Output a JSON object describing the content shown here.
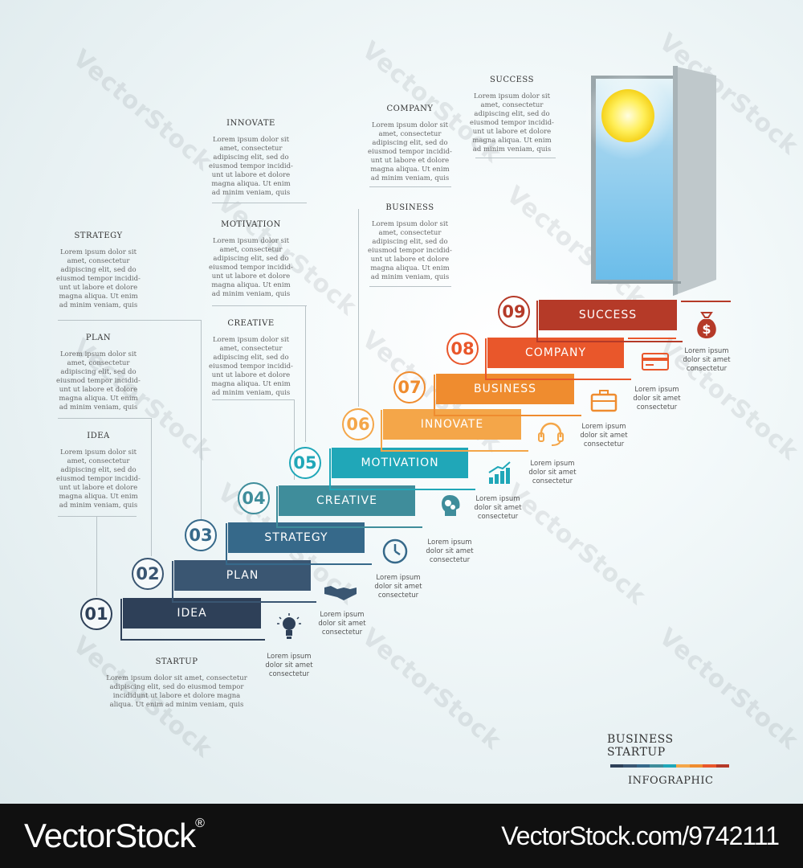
{
  "watermark": "VectorStock",
  "top_blocks": [
    {
      "title": "STRATEGY",
      "text": "Lorem ipsum dolor sit amet, consectetur adipiscing elit, sed do eiusmod tempor incidid-unt ut labore et dolore magna aliqua. Ut enim ad minim veniam, quis"
    },
    {
      "title": "PLAN",
      "text": "Lorem ipsum dolor sit amet, consectetur adipiscing elit, sed do eiusmod tempor incidid-unt ut labore et dolore magna aliqua. Ut enim ad minim veniam, quis"
    },
    {
      "title": "IDEA",
      "text": "Lorem ipsum dolor sit amet, consectetur adipiscing elit, sed do eiusmod tempor incidid-unt ut labore et dolore magna aliqua. Ut enim ad minim veniam, quis"
    },
    {
      "title": "INNOVATE",
      "text": "Lorem ipsum dolor sit amet, consectetur adipiscing elit, sed do eiusmod tempor incidid-unt ut labore et dolore magna aliqua. Ut enim ad minim veniam, quis"
    },
    {
      "title": "MOTIVATION",
      "text": "Lorem ipsum dolor sit amet, consectetur adipiscing elit, sed do eiusmod tempor incidid-unt ut labore et dolore magna aliqua. Ut enim ad minim veniam, quis"
    },
    {
      "title": "CREATIVE",
      "text": "Lorem ipsum dolor sit amet, consectetur adipiscing elit, sed do eiusmod tempor incidid-unt ut labore et dolore magna aliqua. Ut enim ad minim veniam, quis"
    },
    {
      "title": "COMPANY",
      "text": "Lorem ipsum dolor sit amet, consectetur adipiscing elit, sed do eiusmod tempor incidid-unt ut labore et dolore magna aliqua. Ut enim ad minim veniam, quis"
    },
    {
      "title": "BUSINESS",
      "text": "Lorem ipsum dolor sit amet, consectetur adipiscing elit, sed do eiusmod tempor incidid-unt ut labore et dolore magna aliqua. Ut enim ad minim veniam, quis"
    },
    {
      "title": "SUCCESS",
      "text": "Lorem ipsum dolor sit amet, consectetur adipiscing elit, sed do eiusmod tempor incidid-unt ut labore et dolore magna aliqua. Ut enim ad minim veniam, quis"
    }
  ],
  "startup": {
    "title": "STARTUP",
    "text": "Lorem ipsum dolor sit amet, consectetur adipiscing elit, sed do eiusmod tempor incididunt ut labore et dolore magna aliqua. Ut enim ad minim veniam, quis"
  },
  "steps": [
    {
      "num": "01",
      "label": "IDEA",
      "color": "#2e4058",
      "icon": "lightbulb-icon",
      "caption": "Lorem ipsum dolor sit amet consectetur"
    },
    {
      "num": "02",
      "label": "PLAN",
      "color": "#3a5672",
      "icon": "handshake-icon",
      "caption": "Lorem ipsum dolor sit amet consectetur"
    },
    {
      "num": "03",
      "label": "STRATEGY",
      "color": "#36698a",
      "icon": "clock-icon",
      "caption": "Lorem ipsum dolor sit amet consectetur"
    },
    {
      "num": "04",
      "label": "CREATIVE",
      "color": "#3f8d9b",
      "icon": "head-gears-icon",
      "caption": "Lorem ipsum dolor sit amet consectetur"
    },
    {
      "num": "05",
      "label": "MOTIVATION",
      "color": "#20a7b8",
      "icon": "growth-chart-icon",
      "caption": "Lorem ipsum dolor sit amet consectetur"
    },
    {
      "num": "06",
      "label": "INNOVATE",
      "color": "#f4a649",
      "icon": "headset-icon",
      "caption": "Lorem ipsum dolor sit amet consectetur"
    },
    {
      "num": "07",
      "label": "BUSINESS",
      "color": "#ef8c2f",
      "icon": "briefcase-icon",
      "caption": "Lorem ipsum dolor sit amet consectetur"
    },
    {
      "num": "08",
      "label": "COMPANY",
      "color": "#e9572b",
      "icon": "credit-card-icon",
      "caption": "Lorem ipsum dolor sit amet consectetur"
    },
    {
      "num": "09",
      "label": "SUCCESS",
      "color": "#b53a28",
      "icon": "money-bag-icon",
      "caption": "Lorem ipsum dolor sit amet consectetur"
    }
  ],
  "legend": {
    "line1a": "BUSINESS",
    "line1b": "STARTUP",
    "line2": "INFOGRAPHIC"
  },
  "footer": {
    "brand": "VectorStock",
    "registered": "®",
    "image_id": "VectorStock.com/9742111"
  }
}
